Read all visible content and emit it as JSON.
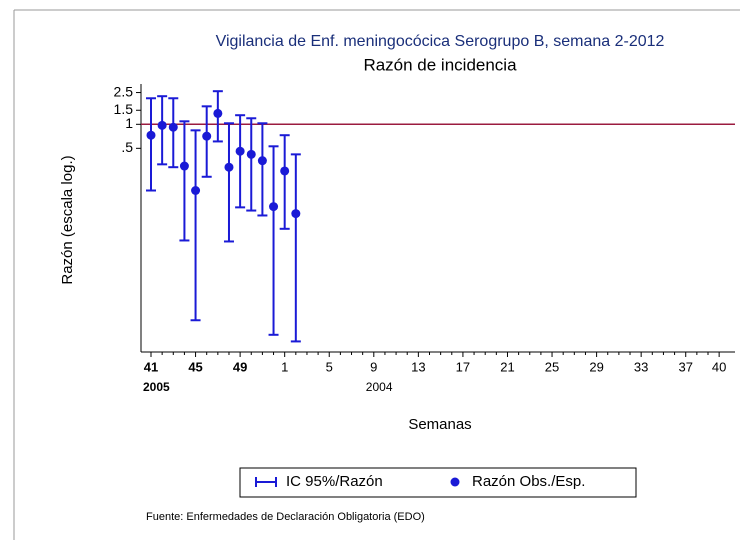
{
  "chart_data": {
    "type": "errorbar",
    "title": "Vigilancia de Enf. meningocócica Serogrupo B, semana 2-2012",
    "subtitle": "Razón de incidencia",
    "y_label": "Razón (escala log.)",
    "x_label": "Semanas",
    "source": "Fuente: Enfermedades de Declaración Obligatoria (EDO)",
    "log_y": true,
    "color": "#1a1ad6",
    "reference_line": {
      "value": 1,
      "color": "#9b1b3f"
    },
    "legend": [
      "IC 95%/Razón",
      "Razón Obs./Esp."
    ],
    "categories": [
      "41",
      null,
      null,
      null,
      "45",
      null,
      null,
      null,
      "49",
      null,
      null,
      null,
      "1",
      null,
      null,
      null,
      "5",
      null,
      null,
      null,
      "9",
      null,
      null,
      null,
      "13",
      null,
      null,
      null,
      "17",
      null,
      null,
      null,
      "21",
      null,
      null,
      null,
      "25",
      null,
      null,
      null,
      "29",
      null,
      null,
      null,
      "33",
      null,
      null,
      null,
      "37",
      null,
      null,
      "40"
    ],
    "year_labels": [
      "2005",
      null,
      null,
      null,
      null,
      null,
      null,
      null,
      null,
      null,
      null,
      null,
      null,
      null,
      null,
      null,
      null,
      null,
      null,
      null,
      "2004",
      null,
      null,
      null,
      null,
      null,
      null,
      null,
      null,
      null,
      null,
      null,
      null,
      null,
      null,
      null,
      null,
      null,
      null,
      null,
      null,
      null,
      null,
      null,
      null,
      null,
      null,
      null,
      null,
      null,
      null,
      null
    ],
    "values": [
      0.73,
      0.97,
      0.92,
      0.3,
      0.148,
      0.71,
      1.37,
      0.29,
      0.46,
      0.42,
      0.35,
      0.093,
      0.26,
      0.076,
      null,
      null,
      null,
      null,
      null,
      null,
      null,
      null,
      null,
      null,
      null,
      null,
      null,
      null,
      null,
      null,
      null,
      null,
      null,
      null,
      null,
      null,
      null,
      null,
      null,
      null,
      null,
      null,
      null,
      null,
      null,
      null,
      null,
      null,
      null,
      null,
      null,
      null
    ],
    "lower": [
      0.148,
      0.315,
      0.29,
      0.035,
      0.0035,
      0.22,
      0.61,
      0.034,
      0.091,
      0.083,
      0.072,
      0.0023,
      0.049,
      0.0019,
      null,
      null,
      null,
      null,
      null,
      null,
      null,
      null,
      null,
      null,
      null,
      null,
      null,
      null,
      null,
      null,
      null,
      null,
      null,
      null,
      null,
      null,
      null,
      null,
      null,
      null,
      null,
      null,
      null,
      null,
      null,
      null,
      null,
      null,
      null,
      null,
      null,
      null
    ],
    "upper": [
      2.12,
      2.25,
      2.12,
      1.09,
      0.84,
      1.68,
      2.6,
      1.03,
      1.3,
      1.19,
      1.03,
      0.53,
      0.73,
      0.42,
      null,
      null,
      null,
      null,
      null,
      null,
      null,
      null,
      null,
      null,
      null,
      null,
      null,
      null,
      null,
      null,
      null,
      null,
      null,
      null,
      null,
      null,
      null,
      null,
      null,
      null,
      null,
      null,
      null,
      null,
      null,
      null,
      null,
      null,
      null,
      null,
      null,
      null
    ],
    "ylim": [
      0.0014,
      3.2
    ],
    "yticks": [
      {
        "value": 0.5,
        "label": ".5"
      },
      1,
      1.5,
      2.5
    ]
  }
}
